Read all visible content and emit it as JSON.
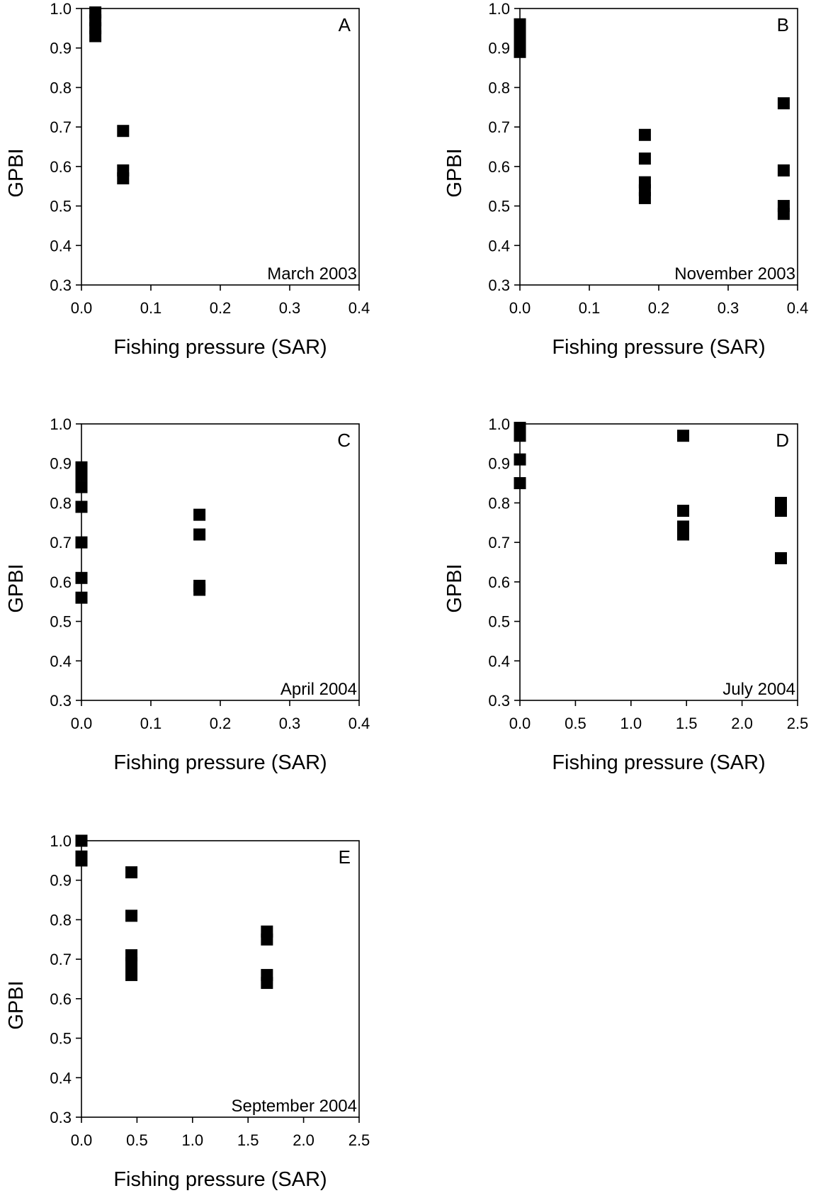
{
  "chart_data": [
    {
      "type": "scatter",
      "panel": "A",
      "annotation": "March 2003",
      "xlabel": "Fishing pressure (SAR)",
      "ylabel": "GPBI",
      "xlim": [
        0.0,
        0.4
      ],
      "ylim": [
        0.3,
        1.0
      ],
      "xticks": [
        "0.0",
        "0.1",
        "0.2",
        "0.3",
        "0.4"
      ],
      "yticks": [
        "0.3",
        "0.4",
        "0.5",
        "0.6",
        "0.7",
        "0.8",
        "0.9",
        "1.0"
      ],
      "grid": false,
      "points": [
        {
          "x": 0.02,
          "y": 0.99
        },
        {
          "x": 0.02,
          "y": 0.97
        },
        {
          "x": 0.02,
          "y": 0.95
        },
        {
          "x": 0.02,
          "y": 0.93
        },
        {
          "x": 0.06,
          "y": 0.69
        },
        {
          "x": 0.06,
          "y": 0.59
        },
        {
          "x": 0.06,
          "y": 0.57
        }
      ]
    },
    {
      "type": "scatter",
      "panel": "B",
      "annotation": "November 2003",
      "xlabel": "Fishing pressure  (SAR)",
      "ylabel": "GPBI",
      "xlim": [
        0.0,
        0.4
      ],
      "ylim": [
        0.3,
        1.0
      ],
      "xticks": [
        "0.0",
        "0.1",
        "0.2",
        "0.3",
        "0.4"
      ],
      "yticks": [
        "0.3",
        "0.4",
        "0.5",
        "0.6",
        "0.7",
        "0.8",
        "0.9",
        "1.0"
      ],
      "grid": false,
      "points": [
        {
          "x": 0.0,
          "y": 0.96
        },
        {
          "x": 0.0,
          "y": 0.94
        },
        {
          "x": 0.0,
          "y": 0.92
        },
        {
          "x": 0.0,
          "y": 0.89
        },
        {
          "x": 0.18,
          "y": 0.68
        },
        {
          "x": 0.18,
          "y": 0.62
        },
        {
          "x": 0.18,
          "y": 0.56
        },
        {
          "x": 0.18,
          "y": 0.54
        },
        {
          "x": 0.18,
          "y": 0.52
        },
        {
          "x": 0.38,
          "y": 0.76
        },
        {
          "x": 0.38,
          "y": 0.59
        },
        {
          "x": 0.38,
          "y": 0.5
        },
        {
          "x": 0.38,
          "y": 0.48
        }
      ]
    },
    {
      "type": "scatter",
      "panel": "C",
      "annotation": "April 2004",
      "xlabel": "Fishing pressure  (SAR)",
      "ylabel": "GPBI",
      "xlim": [
        0.0,
        0.4
      ],
      "ylim": [
        0.3,
        1.0
      ],
      "xticks": [
        "0.0",
        "0.1",
        "0.2",
        "0.3",
        "0.4"
      ],
      "yticks": [
        "0.3",
        "0.4",
        "0.5",
        "0.6",
        "0.7",
        "0.8",
        "0.9",
        "1.0"
      ],
      "grid": false,
      "points": [
        {
          "x": 0.0,
          "y": 0.89
        },
        {
          "x": 0.0,
          "y": 0.87
        },
        {
          "x": 0.0,
          "y": 0.84
        },
        {
          "x": 0.0,
          "y": 0.79
        },
        {
          "x": 0.0,
          "y": 0.7
        },
        {
          "x": 0.0,
          "y": 0.61
        },
        {
          "x": 0.0,
          "y": 0.56
        },
        {
          "x": 0.17,
          "y": 0.77
        },
        {
          "x": 0.17,
          "y": 0.72
        },
        {
          "x": 0.17,
          "y": 0.59
        },
        {
          "x": 0.17,
          "y": 0.58
        }
      ]
    },
    {
      "type": "scatter",
      "panel": "D",
      "annotation": "July 2004",
      "xlabel": "Fishing pressure  (SAR)",
      "ylabel": "GPBI",
      "xlim": [
        0.0,
        2.5
      ],
      "ylim": [
        0.3,
        1.0
      ],
      "xticks": [
        "0.0",
        "0.5",
        "1.0",
        "1.5",
        "2.0",
        "2.5"
      ],
      "yticks": [
        "0.3",
        "0.4",
        "0.5",
        "0.6",
        "0.7",
        "0.8",
        "0.9",
        "1.0"
      ],
      "grid": false,
      "points": [
        {
          "x": 0.0,
          "y": 0.99
        },
        {
          "x": 0.0,
          "y": 0.97
        },
        {
          "x": 0.0,
          "y": 0.91
        },
        {
          "x": 0.0,
          "y": 0.85
        },
        {
          "x": 1.47,
          "y": 0.97
        },
        {
          "x": 1.47,
          "y": 0.78
        },
        {
          "x": 1.47,
          "y": 0.74
        },
        {
          "x": 1.47,
          "y": 0.72
        },
        {
          "x": 2.35,
          "y": 0.8
        },
        {
          "x": 2.35,
          "y": 0.78
        },
        {
          "x": 2.35,
          "y": 0.66
        }
      ]
    },
    {
      "type": "scatter",
      "panel": "E",
      "annotation": "September 2004",
      "xlabel": "Fishing pressure  (SAR)",
      "ylabel": "GPBI",
      "xlim": [
        0.0,
        2.5
      ],
      "ylim": [
        0.3,
        1.0
      ],
      "xticks": [
        "0.0",
        "0.5",
        "1.0",
        "1.5",
        "2.0",
        "2.5"
      ],
      "yticks": [
        "0.3",
        "0.4",
        "0.5",
        "0.6",
        "0.7",
        "0.8",
        "0.9",
        "1.0"
      ],
      "grid": false,
      "points": [
        {
          "x": 0.0,
          "y": 1.0
        },
        {
          "x": 0.0,
          "y": 0.96
        },
        {
          "x": 0.0,
          "y": 0.95
        },
        {
          "x": 0.45,
          "y": 0.92
        },
        {
          "x": 0.45,
          "y": 0.81
        },
        {
          "x": 0.45,
          "y": 0.71
        },
        {
          "x": 0.45,
          "y": 0.69
        },
        {
          "x": 0.45,
          "y": 0.66
        },
        {
          "x": 1.67,
          "y": 0.77
        },
        {
          "x": 1.67,
          "y": 0.75
        },
        {
          "x": 1.67,
          "y": 0.66
        },
        {
          "x": 1.67,
          "y": 0.64
        }
      ]
    }
  ]
}
